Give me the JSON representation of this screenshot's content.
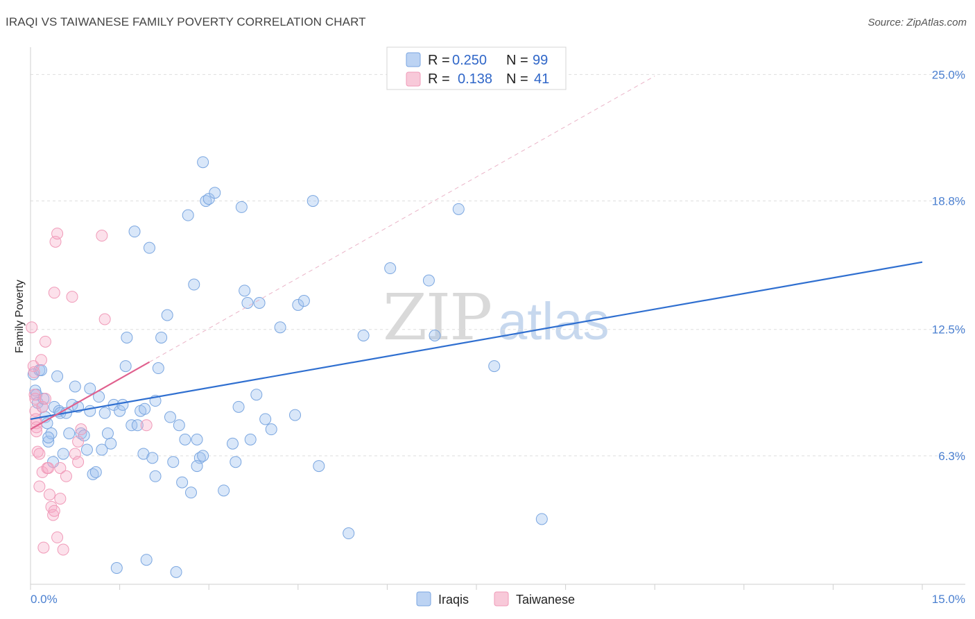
{
  "title": "IRAQI VS TAIWANESE FAMILY POVERTY CORRELATION CHART",
  "source": "Source: ZipAtlas.com",
  "colors": {
    "iraqi": "#7aa6e0",
    "iraqi_line": "#2f6fd0",
    "taiwanese": "#f09ab8",
    "taiwanese_line": "#e0608e",
    "axis_text": "#4a7fd0"
  },
  "legend": {
    "r_label": "R =",
    "n_label": "N =",
    "rows": [
      {
        "r": "0.250",
        "n": "99"
      },
      {
        "r": "0.138",
        "n": "41"
      }
    ]
  },
  "watermark": {
    "zip": "ZIP",
    "atlas": "atlas"
  },
  "chart_data": {
    "type": "scatter",
    "title": "IRAQI VS TAIWANESE FAMILY POVERTY CORRELATION CHART",
    "xlabel": "",
    "ylabel": "Family Poverty",
    "xlim": [
      0,
      15
    ],
    "ylim": [
      0,
      26
    ],
    "x_tick_labels": [
      "0.0%",
      "15.0%"
    ],
    "y_ticks": [
      6.3,
      12.5,
      18.8,
      25.0
    ],
    "y_tick_labels": [
      "6.3%",
      "12.5%",
      "18.8%",
      "25.0%"
    ],
    "grid": true,
    "legend_position": "top-center",
    "series": [
      {
        "name": "Iraqis",
        "trend": [
          [
            0,
            8.1
          ],
          [
            15,
            15.8
          ]
        ],
        "points": [
          [
            0.05,
            10.3
          ],
          [
            0.08,
            9.5
          ],
          [
            0.1,
            9.3
          ],
          [
            0.12,
            8.9
          ],
          [
            0.15,
            10.5
          ],
          [
            0.18,
            10.5
          ],
          [
            0.2,
            8.7
          ],
          [
            0.22,
            9.1
          ],
          [
            0.25,
            8.2
          ],
          [
            0.28,
            7.9
          ],
          [
            0.3,
            7.0
          ],
          [
            0.35,
            7.4
          ],
          [
            0.38,
            6.0
          ],
          [
            0.4,
            8.7
          ],
          [
            0.45,
            10.2
          ],
          [
            0.48,
            8.5
          ],
          [
            0.5,
            8.4
          ],
          [
            0.55,
            6.4
          ],
          [
            0.6,
            8.4
          ],
          [
            0.65,
            7.4
          ],
          [
            0.7,
            8.8
          ],
          [
            0.75,
            9.7
          ],
          [
            0.8,
            8.7
          ],
          [
            0.85,
            7.4
          ],
          [
            0.9,
            7.3
          ],
          [
            0.95,
            6.6
          ],
          [
            1.0,
            8.5
          ],
          [
            1.05,
            5.4
          ],
          [
            1.1,
            5.5
          ],
          [
            1.15,
            9.2
          ],
          [
            1.2,
            6.6
          ],
          [
            1.25,
            8.4
          ],
          [
            1.3,
            7.4
          ],
          [
            1.35,
            6.9
          ],
          [
            1.4,
            8.8
          ],
          [
            1.45,
            0.8
          ],
          [
            1.5,
            8.5
          ],
          [
            1.55,
            8.8
          ],
          [
            1.6,
            10.7
          ],
          [
            1.62,
            12.1
          ],
          [
            1.7,
            7.8
          ],
          [
            1.75,
            17.3
          ],
          [
            1.8,
            7.8
          ],
          [
            1.85,
            8.5
          ],
          [
            1.9,
            6.4
          ],
          [
            1.92,
            8.6
          ],
          [
            1.95,
            1.2
          ],
          [
            2.0,
            16.5
          ],
          [
            2.05,
            6.2
          ],
          [
            2.1,
            5.3
          ],
          [
            2.15,
            10.6
          ],
          [
            2.2,
            12.1
          ],
          [
            2.3,
            13.2
          ],
          [
            2.35,
            8.2
          ],
          [
            2.4,
            6.0
          ],
          [
            2.45,
            0.6
          ],
          [
            2.5,
            7.8
          ],
          [
            2.55,
            5.0
          ],
          [
            2.6,
            7.1
          ],
          [
            2.65,
            18.1
          ],
          [
            2.7,
            4.5
          ],
          [
            2.75,
            14.7
          ],
          [
            2.8,
            7.1
          ],
          [
            2.85,
            6.2
          ],
          [
            2.8,
            5.8
          ],
          [
            2.9,
            20.7
          ],
          [
            2.9,
            6.3
          ],
          [
            2.95,
            18.8
          ],
          [
            3.0,
            18.9
          ],
          [
            3.1,
            19.2
          ],
          [
            3.25,
            4.6
          ],
          [
            3.4,
            6.9
          ],
          [
            3.45,
            6.0
          ],
          [
            3.5,
            8.7
          ],
          [
            3.55,
            18.5
          ],
          [
            3.6,
            14.4
          ],
          [
            3.65,
            13.8
          ],
          [
            3.7,
            7.1
          ],
          [
            3.8,
            9.3
          ],
          [
            3.85,
            13.8
          ],
          [
            3.95,
            8.1
          ],
          [
            4.05,
            7.6
          ],
          [
            4.2,
            12.6
          ],
          [
            4.45,
            8.3
          ],
          [
            4.5,
            13.7
          ],
          [
            4.6,
            13.9
          ],
          [
            4.75,
            18.8
          ],
          [
            4.85,
            5.8
          ],
          [
            5.35,
            2.5
          ],
          [
            5.6,
            12.2
          ],
          [
            6.05,
            15.5
          ],
          [
            6.7,
            14.9
          ],
          [
            6.8,
            12.2
          ],
          [
            7.2,
            18.4
          ],
          [
            7.8,
            10.7
          ],
          [
            8.6,
            3.2
          ],
          [
            0.3,
            7.2
          ],
          [
            1.0,
            9.6
          ],
          [
            2.1,
            9.0
          ]
        ]
      },
      {
        "name": "Taiwanese",
        "trend": [
          [
            0,
            7.6
          ],
          [
            2.0,
            10.9
          ]
        ],
        "points": [
          [
            0.02,
            12.6
          ],
          [
            0.05,
            10.7
          ],
          [
            0.06,
            10.4
          ],
          [
            0.07,
            9.3
          ],
          [
            0.08,
            9.1
          ],
          [
            0.08,
            8.5
          ],
          [
            0.09,
            8.1
          ],
          [
            0.1,
            7.9
          ],
          [
            0.1,
            7.7
          ],
          [
            0.1,
            7.5
          ],
          [
            0.12,
            6.5
          ],
          [
            0.15,
            6.4
          ],
          [
            0.15,
            4.8
          ],
          [
            0.18,
            11.0
          ],
          [
            0.2,
            8.7
          ],
          [
            0.2,
            5.5
          ],
          [
            0.22,
            1.8
          ],
          [
            0.25,
            11.9
          ],
          [
            0.25,
            9.1
          ],
          [
            0.28,
            5.7
          ],
          [
            0.3,
            5.7
          ],
          [
            0.32,
            4.4
          ],
          [
            0.35,
            3.8
          ],
          [
            0.38,
            3.4
          ],
          [
            0.4,
            14.3
          ],
          [
            0.4,
            3.6
          ],
          [
            0.42,
            16.8
          ],
          [
            0.45,
            17.2
          ],
          [
            0.45,
            2.3
          ],
          [
            0.5,
            5.7
          ],
          [
            0.5,
            4.2
          ],
          [
            0.55,
            1.7
          ],
          [
            0.6,
            5.3
          ],
          [
            0.7,
            14.1
          ],
          [
            0.75,
            6.4
          ],
          [
            0.8,
            6.0
          ],
          [
            0.8,
            7.0
          ],
          [
            0.85,
            7.6
          ],
          [
            1.2,
            17.1
          ],
          [
            1.25,
            13.0
          ],
          [
            1.95,
            7.8
          ]
        ]
      }
    ]
  },
  "bottom_legend": [
    {
      "label": "Iraqis"
    },
    {
      "label": "Taiwanese"
    }
  ]
}
